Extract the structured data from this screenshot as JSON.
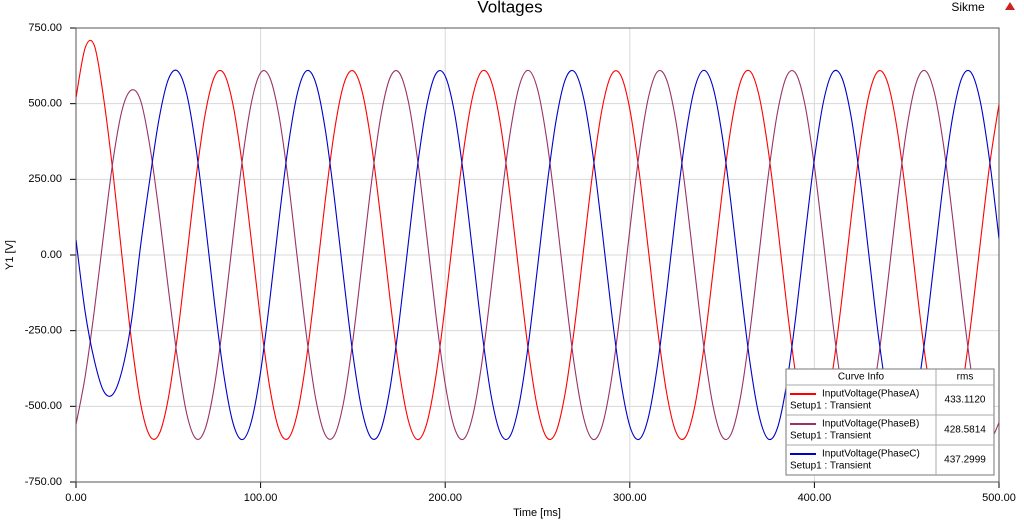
{
  "chart_data": {
    "type": "line",
    "title": "Voltages",
    "corner_label": "Sikme",
    "x_label": "Time [ms]",
    "y_label": "Y1 [V]",
    "grid": true,
    "xlim": [
      0,
      500
    ],
    "ylim": [
      -750,
      750
    ],
    "xticks": [
      {
        "value": 0,
        "label": "0.00"
      },
      {
        "value": 100,
        "label": "100.00"
      },
      {
        "value": 200,
        "label": "200.00"
      },
      {
        "value": 300,
        "label": "300.00"
      },
      {
        "value": 400,
        "label": "400.00"
      },
      {
        "value": 500,
        "label": "500.00"
      }
    ],
    "yticks": [
      {
        "value": -750,
        "label": "-750.00"
      },
      {
        "value": -500,
        "label": "-500.00"
      },
      {
        "value": -250,
        "label": "-250.00"
      },
      {
        "value": 0,
        "label": "0.00"
      },
      {
        "value": 250,
        "label": "250.00"
      },
      {
        "value": 500,
        "label": "500.00"
      },
      {
        "value": 750,
        "label": "750.00"
      }
    ],
    "legend": {
      "headers": [
        "Curve Info",
        "rms"
      ]
    },
    "x": [
      0,
      5,
      10,
      15,
      20,
      25,
      30,
      35,
      40,
      45,
      50,
      55,
      60,
      65,
      70,
      75,
      80,
      85,
      90,
      95,
      100,
      105,
      110,
      115,
      120,
      125,
      130,
      135,
      140,
      145,
      150,
      155,
      160,
      165,
      170,
      175,
      180,
      185,
      190,
      195,
      200,
      205,
      210,
      215,
      220,
      225,
      230,
      235,
      240,
      245,
      250,
      255,
      260,
      265,
      270,
      275,
      280,
      285,
      290,
      295,
      300,
      305,
      310,
      315,
      320,
      325,
      330,
      335,
      340,
      345,
      350,
      355,
      360,
      365,
      370,
      375,
      380,
      385,
      390,
      395,
      400,
      405,
      410,
      415,
      420,
      425,
      430,
      435,
      440,
      445,
      450,
      455,
      460,
      465,
      470,
      475,
      480,
      485,
      490,
      495,
      500
    ],
    "series": [
      {
        "name": "InputVoltage(PhaseA)",
        "setup": "Setup1 : Transient",
        "rms": "433.1120",
        "color": "#ff0000",
        "values": [
          520,
          685,
          691,
          517,
          274,
          -9,
          -280,
          -491,
          -598,
          -592,
          -474,
          -265,
          -6,
          254,
          466,
          589,
          601,
          498,
          301,
          47,
          -217,
          -439,
          -577,
          -606,
          -520,
          -335,
          -86,
          179,
          410,
          563,
          609,
          540,
          368,
          126,
          -140,
          -379,
          -546,
          -610,
          -557,
          -399,
          -165,
          100,
          347,
          527,
          608,
          573,
          429,
          203,
          -61,
          -313,
          -506,
          -603,
          -585,
          -456,
          -241,
          20,
          278,
          483,
          595,
          595,
          482,
          277,
          20,
          -242,
          -457,
          -585,
          -603,
          -506,
          -312,
          -60,
          204,
          429,
          573,
          608,
          527,
          346,
          100,
          -166,
          -400,
          -558,
          -610,
          -546,
          -378,
          -139,
          127,
          369,
          540,
          609,
          563,
          409,
          178,
          -87,
          -336,
          -521,
          -606,
          -577,
          -438,
          -216,
          47,
          301,
          498
        ]
      },
      {
        "name": "InputVoltage(PhaseB)",
        "setup": "Setup1 : Transient",
        "rms": "428.5814",
        "color": "#993366",
        "values": [
          -560,
          -400,
          -180,
          70,
          310,
          480,
          545,
          510,
          360,
          140,
          -110,
          -343,
          -525,
          -607,
          -574,
          -432,
          -208,
          56,
          309,
          503,
          602,
          586,
          459,
          245,
          -16,
          -274,
          -480,
          -594,
          -596,
          -485,
          -281,
          -24,
          237,
          454,
          584,
          603,
          508,
          316,
          64,
          -200,
          -426,
          -571,
          -608,
          -529,
          -350,
          -104,
          161,
          396,
          556,
          610,
          548,
          382,
          143,
          -122,
          -365,
          -538,
          -609,
          -565,
          -413,
          -182,
          83,
          332,
          518,
          606,
          578,
          441,
          220,
          -43,
          -298,
          -496,
          -600,
          -590,
          -468,
          -257,
          3,
          262,
          471,
          591,
          599,
          493,
          293,
          38,
          -225,
          -445,
          -580,
          -605,
          -515,
          -328,
          -78,
          187,
          416,
          566,
          609,
          536,
          361,
          117,
          -149,
          -386,
          -550,
          -610,
          -554
        ]
      },
      {
        "name": "InputVoltage(PhaseC)",
        "setup": "Setup1 : Transient",
        "rms": "437.2999",
        "color": "#0000cc",
        "values": [
          50,
          -190,
          -350,
          -450,
          -460,
          -380,
          -220,
          31,
          250,
          450,
          580,
          608,
          531,
          354,
          109,
          -157,
          -393,
          -554,
          -610,
          -550,
          -386,
          -148,
          118,
          361,
          536,
          609,
          566,
          416,
          186,
          -78,
          -328,
          -516,
          -605,
          -580,
          -444,
          -224,
          38,
          294,
          493,
          599,
          591,
          471,
          261,
          2,
          -258,
          -469,
          -590,
          -600,
          -495,
          -297,
          -42,
          221,
          442,
          579,
          606,
          518,
          331,
          82,
          -183,
          -413,
          -565,
          -609,
          -538,
          -364,
          -122,
          144,
          383,
          548,
          610,
          556,
          396,
          161,
          -105,
          -351,
          -530,
          -608,
          -571,
          -425,
          -199,
          65,
          317,
          509,
          604,
          584,
          453,
          237,
          -25,
          -282,
          -485,
          -596,
          -594,
          -479,
          -273,
          -15,
          246,
          460,
          587,
          602,
          503,
          308,
          55
        ]
      }
    ]
  }
}
